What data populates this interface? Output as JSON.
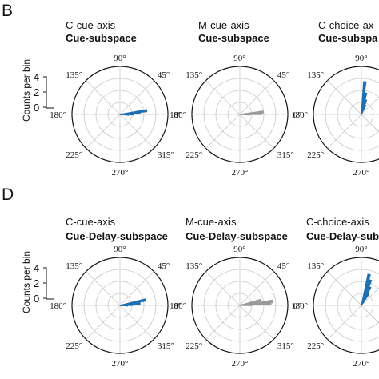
{
  "panels": [
    {
      "letter": "B"
    },
    {
      "letter": "D"
    }
  ],
  "count_axis": {
    "label": "Counts per bin",
    "ticks": [
      "4",
      "2",
      "0"
    ]
  },
  "angle_labels": [
    "90°",
    "45°",
    "0°",
    "315°",
    "270°",
    "225°",
    "180°",
    "135°"
  ],
  "colors": {
    "blue": "#1f6fb2",
    "gray": "#9a9a9a",
    "grid": "#c9c9c9"
  },
  "chart_data": [
    {
      "type": "polar-histogram",
      "title": "C-cue-axis",
      "subtitle": "Cue-subspace",
      "color": "blue",
      "rlim": [
        0,
        4
      ],
      "bins": [
        {
          "angle": 8,
          "count": 3.2
        },
        {
          "angle": 4,
          "count": 2.4
        },
        {
          "angle": 0,
          "count": 1.6
        },
        {
          "angle": -3,
          "count": 1.0
        }
      ]
    },
    {
      "type": "polar-histogram",
      "title": "M-cue-axis",
      "subtitle": "Cue-subspace",
      "color": "gray",
      "rlim": [
        0,
        4
      ],
      "bins": [
        {
          "angle": 6,
          "count": 2.8
        },
        {
          "angle": 2,
          "count": 2.6
        },
        {
          "angle": -1,
          "count": 1.2
        }
      ]
    },
    {
      "type": "polar-histogram",
      "title": "C-choice-ax",
      "subtitle": "Cue-subspa",
      "color": "blue",
      "rlim": [
        0,
        4
      ],
      "bins": [
        {
          "angle": 84,
          "count": 3.9
        },
        {
          "angle": 78,
          "count": 2.6
        },
        {
          "angle": 72,
          "count": 1.8
        },
        {
          "angle": 66,
          "count": 1.2
        }
      ]
    },
    {
      "type": "polar-histogram",
      "title": "C-cue-axis",
      "subtitle": "Cue-Delay-subspace",
      "color": "blue",
      "rlim": [
        0,
        4
      ],
      "bins": [
        {
          "angle": 12,
          "count": 3.1
        },
        {
          "angle": 6,
          "count": 2.4
        },
        {
          "angle": 2,
          "count": 1.5
        },
        {
          "angle": -2,
          "count": 0.9
        }
      ]
    },
    {
      "type": "polar-histogram",
      "title": "M-cue-axis",
      "subtitle": "Cue-Delay-subspace",
      "color": "gray",
      "rlim": [
        0,
        4
      ],
      "bins": [
        {
          "angle": 14,
          "count": 2.6
        },
        {
          "angle": 7,
          "count": 3.9
        },
        {
          "angle": 4,
          "count": 3.7
        },
        {
          "angle": 1,
          "count": 1.4
        }
      ]
    },
    {
      "type": "polar-histogram",
      "title": "C-choice-axis",
      "subtitle": "Cue-Delay-sub",
      "color": "blue",
      "rlim": [
        0,
        4
      ],
      "bins": [
        {
          "angle": 76,
          "count": 3.8
        },
        {
          "angle": 70,
          "count": 3.2
        },
        {
          "angle": 64,
          "count": 2.4
        },
        {
          "angle": 58,
          "count": 1.6
        }
      ]
    }
  ]
}
